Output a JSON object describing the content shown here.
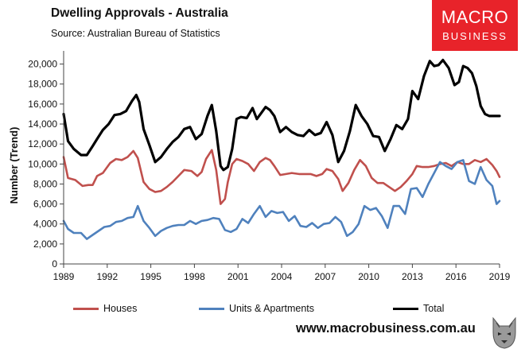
{
  "header": {
    "title": "Dwelling Approvals - Australia",
    "source": "Source:    Australian Bureau of Statistics"
  },
  "logo": {
    "line1": "MACRO",
    "line2": "BUSINESS"
  },
  "footer": {
    "url": "www.macrobusiness.com.au"
  },
  "colors": {
    "houses": "#c0504d",
    "units": "#4f81bd",
    "total": "#000000",
    "brand": "#e8232a"
  },
  "chart_data": {
    "type": "line",
    "title": "Dwelling Approvals - Australia",
    "xlabel": "",
    "ylabel": "Number (Trend)",
    "xlim": [
      1989,
      2019
    ],
    "ylim": [
      0,
      21000
    ],
    "yticks": [
      0,
      2000,
      4000,
      6000,
      8000,
      10000,
      12000,
      14000,
      16000,
      18000,
      20000
    ],
    "ytick_labels": [
      "0",
      "2,000",
      "4,000",
      "6,000",
      "8,000",
      "10,000",
      "12,000",
      "14,000",
      "16,000",
      "18,000",
      "20,000"
    ],
    "xticks": [
      1989,
      1992,
      1995,
      1998,
      2001,
      2004,
      2007,
      2010,
      2013,
      2016,
      2019
    ],
    "xtick_labels": [
      "1989",
      "1992",
      "1995",
      "1998",
      "2001",
      "2004",
      "2007",
      "2010",
      "2013",
      "2016",
      "2019"
    ],
    "grid": false,
    "legend_position": "bottom",
    "series": [
      {
        "name": "Houses",
        "color": "#c0504d",
        "x": [
          1989,
          1989.3,
          1989.8,
          1990.3,
          1990.7,
          1991.0,
          1991.3,
          1991.7,
          1992.2,
          1992.6,
          1993.0,
          1993.4,
          1993.8,
          1994.1,
          1994.5,
          1994.9,
          1995.3,
          1995.7,
          1996.1,
          1996.5,
          1996.9,
          1997.3,
          1997.8,
          1998.2,
          1998.5,
          1998.8,
          1999.2,
          1999.5,
          1999.8,
          2000.1,
          2000.3,
          2000.6,
          2000.9,
          2001.3,
          2001.7,
          2002.1,
          2002.5,
          2002.9,
          2003.2,
          2003.5,
          2003.9,
          2004.3,
          2004.7,
          2005.2,
          2005.6,
          2006.0,
          2006.4,
          2006.8,
          2007.1,
          2007.5,
          2007.9,
          2008.2,
          2008.6,
          2009.0,
          2009.4,
          2009.8,
          2010.2,
          2010.6,
          2011.0,
          2011.4,
          2011.8,
          2012.2,
          2012.6,
          2013.0,
          2013.3,
          2013.7,
          2014.1,
          2014.5,
          2014.9,
          2015.3,
          2015.7,
          2016.1,
          2016.5,
          2016.9,
          2017.3,
          2017.7,
          2018.1,
          2018.5,
          2018.8,
          2019.0
        ],
        "values": [
          10700,
          8600,
          8400,
          7800,
          7900,
          7900,
          8800,
          9100,
          10100,
          10500,
          10400,
          10700,
          11300,
          10600,
          8200,
          7500,
          7200,
          7300,
          7700,
          8200,
          8800,
          9400,
          9300,
          8800,
          9200,
          10500,
          11400,
          9400,
          6000,
          6500,
          8200,
          10000,
          10500,
          10300,
          10000,
          9300,
          10200,
          10600,
          10400,
          9800,
          8900,
          9000,
          9100,
          9000,
          9000,
          9000,
          8800,
          9000,
          9500,
          9300,
          8500,
          7300,
          8100,
          9400,
          10400,
          9800,
          8600,
          8100,
          8100,
          7700,
          7300,
          7700,
          8300,
          9000,
          9800,
          9700,
          9700,
          9800,
          10000,
          10100,
          9800,
          10200,
          10000,
          10000,
          10400,
          10200,
          10500,
          9900,
          9300,
          8700
        ]
      },
      {
        "name": "Units & Apartments",
        "color": "#4f81bd",
        "x": [
          1989,
          1989.3,
          1989.7,
          1990.2,
          1990.6,
          1991.0,
          1991.4,
          1991.8,
          1992.2,
          1992.6,
          1993.0,
          1993.4,
          1993.8,
          1994.1,
          1994.5,
          1994.9,
          1995.3,
          1995.7,
          1996.1,
          1996.5,
          1996.9,
          1997.3,
          1997.7,
          1998.1,
          1998.5,
          1998.9,
          1999.3,
          1999.7,
          2000.1,
          2000.5,
          2000.9,
          2001.3,
          2001.7,
          2002.1,
          2002.5,
          2002.9,
          2003.3,
          2003.7,
          2004.1,
          2004.5,
          2004.9,
          2005.3,
          2005.7,
          2006.1,
          2006.5,
          2006.9,
          2007.3,
          2007.7,
          2008.1,
          2008.5,
          2008.9,
          2009.3,
          2009.7,
          2010.1,
          2010.5,
          2010.9,
          2011.3,
          2011.7,
          2012.1,
          2012.5,
          2012.9,
          2013.3,
          2013.7,
          2014.1,
          2014.5,
          2014.9,
          2015.3,
          2015.7,
          2016.1,
          2016.5,
          2016.9,
          2017.3,
          2017.7,
          2018.1,
          2018.5,
          2018.8,
          2019.0
        ],
        "values": [
          4300,
          3500,
          3100,
          3100,
          2500,
          2900,
          3300,
          3700,
          3800,
          4200,
          4300,
          4600,
          4700,
          5800,
          4300,
          3600,
          2800,
          3300,
          3600,
          3800,
          3900,
          3900,
          4300,
          4000,
          4300,
          4400,
          4600,
          4500,
          3400,
          3200,
          3500,
          4500,
          4100,
          5000,
          5800,
          4700,
          5300,
          5100,
          5200,
          4300,
          4800,
          3800,
          3700,
          4100,
          3600,
          4000,
          4100,
          4700,
          4200,
          2800,
          3200,
          4000,
          5800,
          5400,
          5600,
          4800,
          3600,
          5800,
          5800,
          5000,
          7500,
          7600,
          6700,
          8000,
          9100,
          10200,
          9800,
          9500,
          10200,
          10400,
          8300,
          8000,
          9700,
          8400,
          7800,
          6000,
          6300
        ]
      },
      {
        "name": "Total",
        "color": "#000000",
        "x": [
          1989,
          1989.3,
          1989.7,
          1990.2,
          1990.6,
          1991.0,
          1991.3,
          1991.7,
          1992.1,
          1992.5,
          1992.9,
          1993.3,
          1993.7,
          1994.0,
          1994.2,
          1994.5,
          1994.9,
          1995.3,
          1995.7,
          1996.1,
          1996.5,
          1996.9,
          1997.3,
          1997.7,
          1998.1,
          1998.5,
          1998.9,
          1999.2,
          1999.5,
          1999.8,
          2000.0,
          2000.3,
          2000.6,
          2000.9,
          2001.2,
          2001.6,
          2002.0,
          2002.3,
          2002.6,
          2002.9,
          2003.2,
          2003.5,
          2003.9,
          2004.3,
          2004.7,
          2005.1,
          2005.5,
          2005.9,
          2006.3,
          2006.7,
          2007.1,
          2007.5,
          2007.9,
          2008.3,
          2008.7,
          2009.1,
          2009.5,
          2009.9,
          2010.3,
          2010.7,
          2011.1,
          2011.5,
          2011.9,
          2012.3,
          2012.7,
          2013.0,
          2013.4,
          2013.8,
          2014.2,
          2014.5,
          2014.8,
          2015.1,
          2015.5,
          2015.9,
          2016.2,
          2016.5,
          2016.8,
          2017.1,
          2017.4,
          2017.7,
          2018.0,
          2018.3,
          2018.6,
          2018.8,
          2019.0
        ],
        "values": [
          15000,
          12300,
          11500,
          10900,
          10900,
          11800,
          12500,
          13400,
          14000,
          14900,
          15000,
          15300,
          16300,
          16900,
          16200,
          13500,
          11900,
          10200,
          10700,
          11500,
          12200,
          12700,
          13500,
          13700,
          12500,
          13000,
          14800,
          15900,
          13300,
          9800,
          9400,
          9700,
          11500,
          14500,
          14700,
          14600,
          15600,
          14500,
          15100,
          15700,
          15400,
          14800,
          13200,
          13700,
          13200,
          12900,
          12800,
          13400,
          12900,
          13100,
          14200,
          12900,
          10200,
          11300,
          13300,
          15900,
          14800,
          14000,
          12800,
          12700,
          11300,
          12500,
          13900,
          13500,
          14500,
          17300,
          16500,
          18800,
          20300,
          19800,
          19900,
          20400,
          19600,
          17900,
          18200,
          19800,
          19600,
          19100,
          17800,
          15800,
          15000,
          14800,
          14800,
          14800,
          14800
        ]
      }
    ]
  }
}
